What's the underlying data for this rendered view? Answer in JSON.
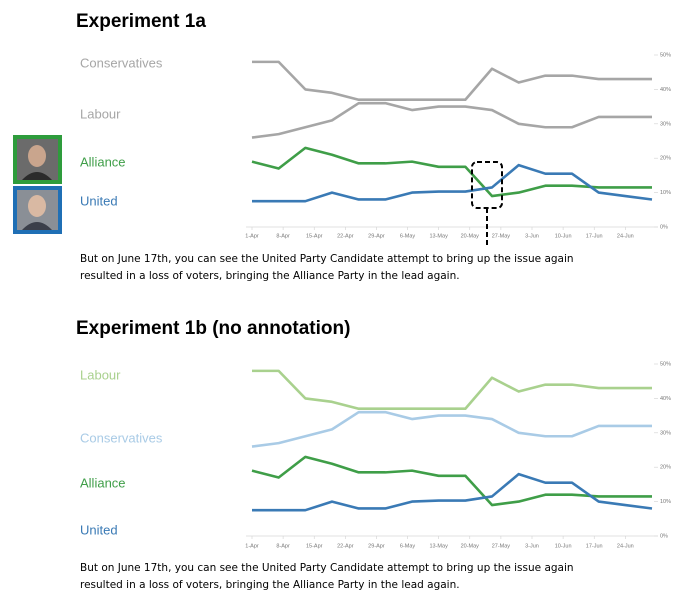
{
  "chart_data": [
    {
      "type": "line",
      "title": "Experiment 1a",
      "caption": [
        "But on June 17th, you can see the United Party Candidate attempt to bring up the issue again",
        "resulted in a loss of voters, bringing the Alliance Party in the lead again."
      ],
      "x": [
        0,
        6,
        12,
        18,
        24,
        30,
        36,
        42,
        48,
        54,
        60,
        66,
        72,
        78,
        84,
        90
      ],
      "xlim": [
        0,
        90
      ],
      "xticks": [
        {
          "value": 0,
          "label": "1-Apr"
        },
        {
          "value": 7,
          "label": "8-Apr"
        },
        {
          "value": 14,
          "label": "15-Apr"
        },
        {
          "value": 21,
          "label": "22-Apr"
        },
        {
          "value": 28,
          "label": "29-Apr"
        },
        {
          "value": 35,
          "label": "6-May"
        },
        {
          "value": 42,
          "label": "13-May"
        },
        {
          "value": 49,
          "label": "20-May"
        },
        {
          "value": 56,
          "label": "27-May"
        },
        {
          "value": 63,
          "label": "3-Jun"
        },
        {
          "value": 70,
          "label": "10-Jun"
        },
        {
          "value": 77,
          "label": "17-Jun"
        },
        {
          "value": 84,
          "label": "24-Jun"
        }
      ],
      "ylim": [
        0,
        50
      ],
      "yticks": [
        {
          "value": 0,
          "label": "0%"
        },
        {
          "value": 10,
          "label": "10%"
        },
        {
          "value": 20,
          "label": "20%"
        },
        {
          "value": 30,
          "label": "30%"
        },
        {
          "value": 40,
          "label": "40%"
        },
        {
          "value": 50,
          "label": "50%"
        }
      ],
      "series": [
        {
          "name": "Conservatives",
          "color": "#a6a6a6",
          "values": [
            48,
            48,
            40,
            39,
            37,
            37,
            37,
            37,
            37,
            46,
            42,
            44,
            44,
            43,
            43,
            43
          ]
        },
        {
          "name": "Labour",
          "color": "#a6a6a6",
          "values": [
            26,
            27,
            29,
            31,
            36,
            36,
            34,
            35,
            35,
            34,
            30,
            29,
            29,
            32,
            32,
            32
          ]
        },
        {
          "name": "Alliance",
          "color": "#3f9e48",
          "values": [
            19,
            17,
            23,
            21,
            18.5,
            18.5,
            19,
            17.5,
            17.5,
            9,
            10,
            12,
            12,
            11.5,
            11.5,
            11.5
          ]
        },
        {
          "name": "United",
          "color": "#3a7ab5",
          "values": [
            7.5,
            7.5,
            7.5,
            10,
            8,
            8,
            10,
            10.3,
            10.3,
            11.5,
            18,
            15.5,
            15.5,
            10,
            9,
            8
          ]
        }
      ]
    },
    {
      "type": "line",
      "title": "Experiment 1b (no annotation)",
      "caption": [
        "But on June 17th, you can see the United Party Candidate attempt to bring up the issue again",
        "resulted in a loss of voters, bringing the Alliance Party in the lead again."
      ],
      "x": [
        0,
        6,
        12,
        18,
        24,
        30,
        36,
        42,
        48,
        54,
        60,
        66,
        72,
        78,
        84,
        90
      ],
      "xlim": [
        0,
        90
      ],
      "xticks": [
        {
          "value": 0,
          "label": "1-Apr"
        },
        {
          "value": 7,
          "label": "8-Apr"
        },
        {
          "value": 14,
          "label": "15-Apr"
        },
        {
          "value": 21,
          "label": "22-Apr"
        },
        {
          "value": 28,
          "label": "29-Apr"
        },
        {
          "value": 35,
          "label": "6-May"
        },
        {
          "value": 42,
          "label": "13-May"
        },
        {
          "value": 49,
          "label": "20-May"
        },
        {
          "value": 56,
          "label": "27-May"
        },
        {
          "value": 63,
          "label": "3-Jun"
        },
        {
          "value": 70,
          "label": "10-Jun"
        },
        {
          "value": 77,
          "label": "17-Jun"
        },
        {
          "value": 84,
          "label": "24-Jun"
        }
      ],
      "ylim": [
        0,
        50
      ],
      "yticks": [
        {
          "value": 0,
          "label": "0%"
        },
        {
          "value": 10,
          "label": "10%"
        },
        {
          "value": 20,
          "label": "20%"
        },
        {
          "value": 30,
          "label": "30%"
        },
        {
          "value": 40,
          "label": "40%"
        },
        {
          "value": 50,
          "label": "50%"
        }
      ],
      "series": [
        {
          "name": "Labour",
          "color": "#a9d18e",
          "values": [
            48,
            48,
            40,
            39,
            37,
            37,
            37,
            37,
            37,
            46,
            42,
            44,
            44,
            43,
            43,
            43
          ]
        },
        {
          "name": "Conservatives",
          "color": "#a9cbe6",
          "values": [
            26,
            27,
            29,
            31,
            36,
            36,
            34,
            35,
            35,
            34,
            30,
            29,
            29,
            32,
            32,
            32
          ]
        },
        {
          "name": "Alliance",
          "color": "#3f9e48",
          "values": [
            19,
            17,
            23,
            21,
            18.5,
            18.5,
            19,
            17.5,
            17.5,
            9,
            10,
            12,
            12,
            11.5,
            11.5,
            11.5
          ]
        },
        {
          "name": "United",
          "color": "#3a7ab5",
          "values": [
            7.5,
            7.5,
            7.5,
            10,
            8,
            8,
            10,
            10.3,
            10.3,
            11.5,
            18,
            15.5,
            15.5,
            10,
            9,
            8
          ]
        }
      ]
    }
  ]
}
